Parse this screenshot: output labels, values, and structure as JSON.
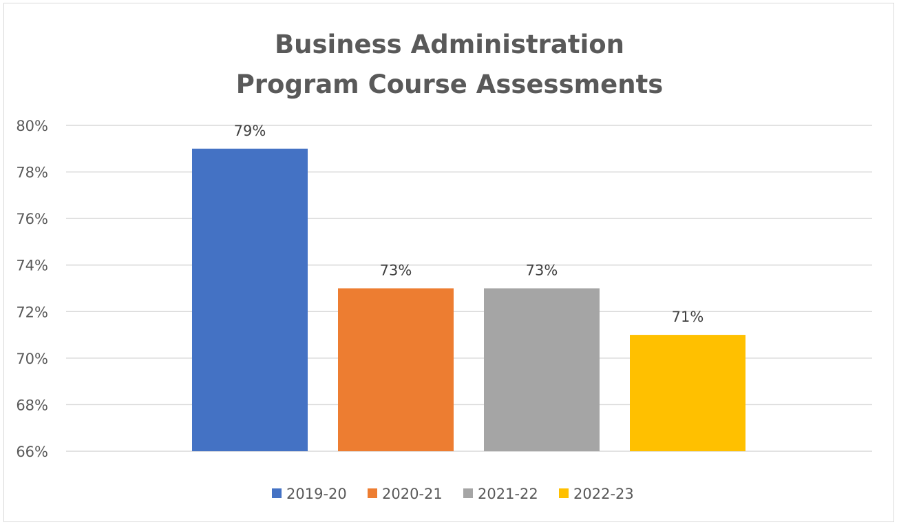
{
  "chart_data": {
    "type": "bar",
    "title_lines": [
      "Business Administration",
      "Program Course Assessments"
    ],
    "xlabel": "",
    "ylabel": "",
    "categories": [
      ""
    ],
    "series": [
      {
        "name": "2019-20",
        "values": [
          79
        ],
        "color": "#4472c4",
        "label": "79%"
      },
      {
        "name": "2020-21",
        "values": [
          73
        ],
        "color": "#ed7d31",
        "label": "73%"
      },
      {
        "name": "2021-22",
        "values": [
          73
        ],
        "color": "#a5a5a5",
        "label": "73%"
      },
      {
        "name": "2022-23",
        "values": [
          71
        ],
        "color": "#ffc000",
        "label": "71%"
      }
    ],
    "ylim": [
      66,
      80
    ],
    "yticks": [
      66,
      68,
      70,
      72,
      74,
      76,
      78,
      80
    ],
    "ytick_labels": [
      "66%",
      "68%",
      "70%",
      "72%",
      "74%",
      "76%",
      "78%",
      "80%"
    ],
    "grid": true,
    "legend": "bottom-center",
    "colors": {
      "grid": "#d9d9d9",
      "text": "#595959",
      "label": "#404040"
    }
  }
}
